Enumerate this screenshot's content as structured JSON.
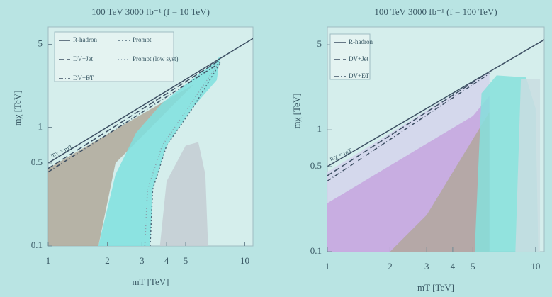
{
  "chart_data": [
    {
      "type": "area",
      "title": "100 TeV 3000 fb⁻¹ (f = 10 TeV)",
      "x_label": "mT [TeV]",
      "y_label": "mχ [TeV]",
      "log_x": true,
      "log_y": true,
      "xlim": [
        1,
        11
      ],
      "ylim": [
        0.1,
        7
      ],
      "xticks": [
        1,
        2,
        3,
        4,
        5,
        10
      ],
      "yticks": [
        0.1,
        0.5,
        1,
        5
      ],
      "legend": "upper left",
      "legend_columns": 2,
      "annotations": [
        "mχ = mT"
      ],
      "regions": [
        {
          "color": "#b0a89a",
          "x": [
            1,
            1,
            5.5,
            2.2,
            1.8
          ],
          "y": [
            0.1,
            0.45,
            2.3,
            0.5,
            0.1
          ]
        },
        {
          "color": "#7fe0df",
          "x": [
            1.8,
            2.2,
            2.8,
            3.8,
            5,
            7,
            7.5,
            7.2,
            5.5,
            4,
            3.4,
            3.3
          ],
          "y": [
            0.1,
            0.4,
            0.9,
            1.6,
            2.3,
            3.5,
            4,
            2.5,
            1.5,
            0.7,
            0.3,
            0.1
          ]
        },
        {
          "color": "#c4ccd4",
          "x": [
            3.7,
            4,
            5,
            5.8,
            6.3,
            6.5
          ],
          "y": [
            0.1,
            0.35,
            0.7,
            0.75,
            0.4,
            0.1
          ]
        }
      ],
      "series": [
        {
          "name": "R-hadron",
          "color": "#3d4f63",
          "dash": "none",
          "x": [
            1,
            11
          ],
          "y": [
            0.5,
            5.6
          ]
        },
        {
          "name": "Prompt",
          "color": "#4e6a7a",
          "dash": "2 3",
          "x": [
            3.3,
            3.4,
            4,
            5.5,
            7.5
          ],
          "y": [
            0.1,
            0.3,
            0.7,
            1.5,
            3.5
          ]
        },
        {
          "name": "DV+Jet",
          "color": "#3d4f63",
          "dash": "8 4",
          "x": [
            1,
            7.5
          ],
          "y": [
            0.45,
            3.7
          ]
        },
        {
          "name": "Prompt (low syst)",
          "color": "#8aa0ad",
          "dash": "1 3",
          "x": [
            3.1,
            3.2,
            3.8,
            5.2,
            7.3
          ],
          "y": [
            0.1,
            0.3,
            0.7,
            1.5,
            3.4
          ]
        },
        {
          "name": "DV+E̸T",
          "color": "#3d4f63",
          "dash": "6 3 1 3",
          "x": [
            1,
            7.5
          ],
          "y": [
            0.42,
            3.5
          ]
        }
      ]
    },
    {
      "type": "area",
      "title": "100 TeV 3000 fb⁻¹ (f = 100 TeV)",
      "x_label": "mT [TeV]",
      "y_label": "mχ [TeV]",
      "log_x": true,
      "log_y": true,
      "xlim": [
        1,
        11
      ],
      "ylim": [
        0.1,
        7
      ],
      "xticks": [
        1,
        2,
        3,
        4,
        5,
        10
      ],
      "yticks": [
        0.1,
        0.5,
        1,
        5
      ],
      "legend": "upper left",
      "legend_columns": 1,
      "annotations": [
        "mχ = mT"
      ],
      "regions": [
        {
          "color": "#d4d4ec",
          "x": [
            1,
            1,
            6,
            6
          ],
          "y": [
            0.1,
            0.45,
            3,
            0.1
          ]
        },
        {
          "color": "#c6a6df",
          "x": [
            1,
            1,
            5,
            6,
            6
          ],
          "y": [
            0.1,
            0.25,
            1.3,
            1.9,
            0.1
          ]
        },
        {
          "color": "#b2a79c",
          "x": [
            2,
            3,
            6,
            6
          ],
          "y": [
            0.1,
            0.2,
            1.4,
            0.1
          ]
        },
        {
          "color": "#86e0dc",
          "x": [
            5.1,
            5.5,
            6.5,
            9,
            10,
            10.3
          ],
          "y": [
            0.1,
            2,
            2.8,
            2.7,
            1.5,
            0.1
          ]
        },
        {
          "color": "#c9dde2",
          "x": [
            8,
            8.5,
            10.5,
            10.5
          ],
          "y": [
            0.1,
            2.6,
            2.6,
            0.1
          ]
        }
      ],
      "series": [
        {
          "name": "R-hadron",
          "color": "#3d4f63",
          "dash": "none",
          "x": [
            1,
            11
          ],
          "y": [
            0.5,
            5.5
          ]
        },
        {
          "name": "DV+Jet",
          "color": "#3d4f63",
          "dash": "8 4",
          "x": [
            1,
            6
          ],
          "y": [
            0.42,
            3
          ]
        },
        {
          "name": "DV+E̸T",
          "color": "#3d4f63",
          "dash": "6 3 1 3",
          "x": [
            1,
            6
          ],
          "y": [
            0.38,
            2.9
          ]
        }
      ]
    }
  ]
}
